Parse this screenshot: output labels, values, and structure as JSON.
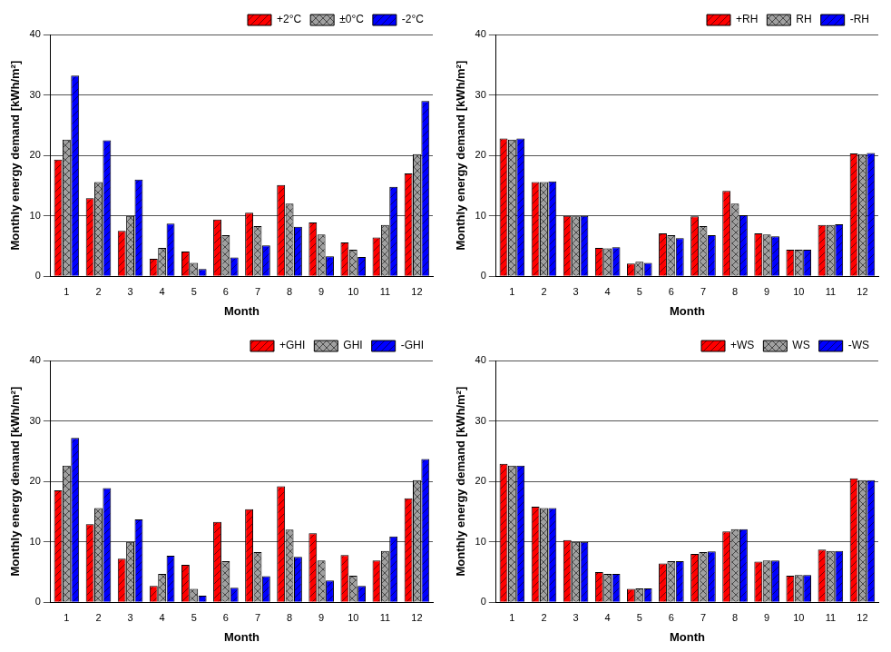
{
  "chart_data": [
    {
      "type": "bar",
      "x_label": "Month",
      "y_label": "Monthly energy demand [kWh/m²]",
      "categories": [
        "1",
        "2",
        "3",
        "4",
        "5",
        "6",
        "7",
        "8",
        "9",
        "10",
        "11",
        "12"
      ],
      "series": [
        {
          "name": "+2°C",
          "color": "#ff0000",
          "values": [
            19.3,
            12.9,
            7.5,
            2.9,
            4.1,
            9.4,
            10.5,
            15.1,
            8.9,
            5.6,
            6.4,
            17.0
          ]
        },
        {
          "name": "±0°C",
          "color": "#a0a0a0",
          "values": [
            22.6,
            15.6,
            10.0,
            4.7,
            2.2,
            6.8,
            8.3,
            12.0,
            6.9,
            4.4,
            8.5,
            20.2
          ]
        },
        {
          "name": "-2°C",
          "color": "#0000ff",
          "values": [
            33.2,
            22.5,
            16.0,
            8.7,
            1.2,
            3.1,
            5.1,
            8.2,
            3.3,
            3.2,
            14.8,
            29.0
          ]
        }
      ],
      "ylim": [
        0,
        40
      ],
      "yticks": [
        0,
        10,
        20,
        30,
        40
      ],
      "grid": true,
      "legend": "top-right"
    },
    {
      "type": "bar",
      "x_label": "Month",
      "y_label": "Monthly energy demand [kWh/m²]",
      "categories": [
        "1",
        "2",
        "3",
        "4",
        "5",
        "6",
        "7",
        "8",
        "9",
        "10",
        "11",
        "12"
      ],
      "series": [
        {
          "name": "+RH",
          "color": "#ff0000",
          "values": [
            22.8,
            15.6,
            10.0,
            4.7,
            2.1,
            7.1,
            9.9,
            14.1,
            7.1,
            4.4,
            8.5,
            20.3
          ]
        },
        {
          "name": "RH",
          "color": "#a0a0a0",
          "values": [
            22.6,
            15.6,
            9.9,
            4.6,
            2.4,
            6.8,
            8.3,
            12.0,
            6.9,
            4.4,
            8.5,
            20.2
          ]
        },
        {
          "name": "-RH",
          "color": "#0000ff",
          "values": [
            22.8,
            15.7,
            10.0,
            4.8,
            2.2,
            6.3,
            6.8,
            10.1,
            6.6,
            4.4,
            8.6,
            20.4
          ]
        }
      ],
      "ylim": [
        0,
        40
      ],
      "yticks": [
        0,
        10,
        20,
        30,
        40
      ],
      "grid": true,
      "legend": "top-right"
    },
    {
      "type": "bar",
      "x_label": "Month",
      "y_label": "Monthly energy demand [kWh/m²]",
      "categories": [
        "1",
        "2",
        "3",
        "4",
        "5",
        "6",
        "7",
        "8",
        "9",
        "10",
        "11",
        "12"
      ],
      "series": [
        {
          "name": "+GHI",
          "color": "#ff0000",
          "values": [
            18.5,
            12.9,
            7.2,
            2.7,
            6.2,
            13.3,
            15.4,
            19.2,
            11.4,
            7.8,
            6.9,
            17.2
          ]
        },
        {
          "name": "GHI",
          "color": "#a0a0a0",
          "values": [
            22.6,
            15.6,
            10.0,
            4.7,
            2.2,
            6.8,
            8.3,
            12.0,
            6.9,
            4.4,
            8.5,
            20.2
          ]
        },
        {
          "name": "-GHI",
          "color": "#0000ff",
          "values": [
            27.2,
            18.9,
            13.7,
            7.7,
            1.1,
            2.4,
            4.3,
            7.5,
            3.6,
            2.7,
            10.9,
            23.7
          ]
        }
      ],
      "ylim": [
        0,
        40
      ],
      "yticks": [
        0,
        10,
        20,
        30,
        40
      ],
      "grid": true,
      "legend": "top-right"
    },
    {
      "type": "bar",
      "x_label": "Month",
      "y_label": "Monthly energy demand [kWh/m²]",
      "categories": [
        "1",
        "2",
        "3",
        "4",
        "5",
        "6",
        "7",
        "8",
        "9",
        "10",
        "11",
        "12"
      ],
      "series": [
        {
          "name": "+WS",
          "color": "#ff0000",
          "values": [
            22.9,
            15.8,
            10.3,
            5.0,
            2.2,
            6.4,
            8.0,
            11.7,
            6.7,
            4.4,
            8.7,
            20.5
          ]
        },
        {
          "name": "WS",
          "color": "#a0a0a0",
          "values": [
            22.6,
            15.6,
            10.0,
            4.7,
            2.3,
            6.8,
            8.3,
            12.1,
            6.9,
            4.5,
            8.5,
            20.2
          ]
        },
        {
          "name": "-WS",
          "color": "#0000ff",
          "values": [
            22.6,
            15.6,
            10.0,
            4.7,
            2.3,
            6.8,
            8.4,
            12.1,
            6.9,
            4.5,
            8.5,
            20.2
          ]
        }
      ],
      "ylim": [
        0,
        40
      ],
      "yticks": [
        0,
        10,
        20,
        30,
        40
      ],
      "grid": true,
      "legend": "top-right"
    }
  ]
}
